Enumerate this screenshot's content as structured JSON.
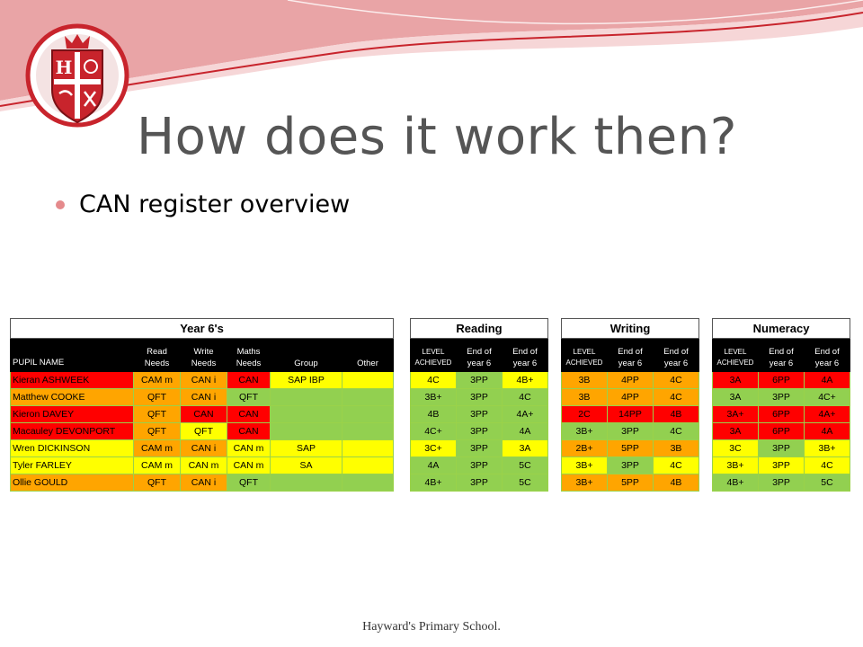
{
  "slide": {
    "title": "How does it work then?",
    "bullet": "CAN register overview",
    "footer": "Hayward's Primary School.",
    "crest_letter": "H",
    "colors": {
      "accent": "#c8242c",
      "wave": "#e9a4a6",
      "title": "#555555",
      "bullet_dot": "#e58a8c"
    }
  },
  "register": {
    "main": {
      "title": "Year 6's",
      "headers": [
        "PUPIL NAME",
        "Read\nNeeds",
        "Write\nNeeds",
        "Maths\nNeeds",
        "Group",
        "Other"
      ],
      "rows": [
        {
          "cells": [
            "Kieran ASHWEEK",
            "CAM m",
            "CAN i",
            "CAN",
            "SAP IBP",
            ""
          ],
          "colors": [
            "r",
            "o",
            "o",
            "r",
            "y",
            "y"
          ]
        },
        {
          "cells": [
            "Matthew COOKE",
            "QFT",
            "CAN i",
            "QFT",
            "",
            ""
          ],
          "colors": [
            "o",
            "o",
            "o",
            "g",
            "g",
            "g"
          ]
        },
        {
          "cells": [
            "Kieron DAVEY",
            "QFT",
            "CAN",
            "CAN",
            "",
            ""
          ],
          "colors": [
            "r",
            "o",
            "r",
            "r",
            "g",
            "g"
          ]
        },
        {
          "cells": [
            "Macauley DEVONPORT",
            "QFT",
            "QFT",
            "CAN",
            "",
            ""
          ],
          "colors": [
            "r",
            "o",
            "y",
            "r",
            "g",
            "g"
          ]
        },
        {
          "cells": [
            "Wren DICKINSON",
            "CAM m",
            "CAN i",
            "CAN m",
            "SAP",
            ""
          ],
          "colors": [
            "y",
            "o",
            "o",
            "y",
            "y",
            "y"
          ]
        },
        {
          "cells": [
            "Tyler FARLEY",
            "CAM m",
            "CAN m",
            "CAN m",
            "SA",
            ""
          ],
          "colors": [
            "y",
            "y",
            "y",
            "y",
            "y",
            "y"
          ]
        },
        {
          "cells": [
            "Ollie GOULD",
            "QFT",
            "CAN i",
            "QFT",
            "",
            ""
          ],
          "colors": [
            "o",
            "o",
            "o",
            "g",
            "g",
            "g"
          ]
        }
      ]
    },
    "subjects": [
      {
        "title": "Reading",
        "headers": [
          "LEVEL\nACHIEVED",
          "End of\nyear 6",
          "End of\nyear 6"
        ],
        "rows": [
          {
            "cells": [
              "4C",
              "3PP",
              "4B+"
            ],
            "colors": [
              "y",
              "g",
              "y"
            ]
          },
          {
            "cells": [
              "3B+",
              "3PP",
              "4C"
            ],
            "colors": [
              "g",
              "g",
              "g"
            ]
          },
          {
            "cells": [
              "4B",
              "3PP",
              "4A+"
            ],
            "colors": [
              "g",
              "g",
              "g"
            ]
          },
          {
            "cells": [
              "4C+",
              "3PP",
              "4A"
            ],
            "colors": [
              "g",
              "g",
              "g"
            ]
          },
          {
            "cells": [
              "3C+",
              "3PP",
              "3A"
            ],
            "colors": [
              "y",
              "g",
              "y"
            ]
          },
          {
            "cells": [
              "4A",
              "3PP",
              "5C"
            ],
            "colors": [
              "g",
              "g",
              "g"
            ]
          },
          {
            "cells": [
              "4B+",
              "3PP",
              "5C"
            ],
            "colors": [
              "g",
              "g",
              "g"
            ]
          }
        ]
      },
      {
        "title": "Writing",
        "headers": [
          "LEVEL\nACHIEVED",
          "End of\nyear 6",
          "End of\nyear 6"
        ],
        "rows": [
          {
            "cells": [
              "3B",
              "4PP",
              "4C"
            ],
            "colors": [
              "o",
              "o",
              "o"
            ]
          },
          {
            "cells": [
              "3B",
              "4PP",
              "4C"
            ],
            "colors": [
              "o",
              "o",
              "o"
            ]
          },
          {
            "cells": [
              "2C",
              "14PP",
              "4B"
            ],
            "colors": [
              "r",
              "r",
              "r"
            ]
          },
          {
            "cells": [
              "3B+",
              "3PP",
              "4C"
            ],
            "colors": [
              "g",
              "g",
              "g"
            ]
          },
          {
            "cells": [
              "2B+",
              "5PP",
              "3B"
            ],
            "colors": [
              "o",
              "o",
              "o"
            ]
          },
          {
            "cells": [
              "3B+",
              "3PP",
              "4C"
            ],
            "colors": [
              "y",
              "g",
              "y"
            ]
          },
          {
            "cells": [
              "3B+",
              "5PP",
              "4B"
            ],
            "colors": [
              "o",
              "o",
              "o"
            ]
          }
        ]
      },
      {
        "title": "Numeracy",
        "headers": [
          "LEVEL\nACHIEVED",
          "End of\nyear 6",
          "End of\nyear 6"
        ],
        "rows": [
          {
            "cells": [
              "3A",
              "6PP",
              "4A"
            ],
            "colors": [
              "r",
              "r",
              "r"
            ]
          },
          {
            "cells": [
              "3A",
              "3PP",
              "4C+"
            ],
            "colors": [
              "g",
              "g",
              "g"
            ]
          },
          {
            "cells": [
              "3A+",
              "6PP",
              "4A+"
            ],
            "colors": [
              "r",
              "r",
              "r"
            ]
          },
          {
            "cells": [
              "3A",
              "6PP",
              "4A"
            ],
            "colors": [
              "r",
              "r",
              "r"
            ]
          },
          {
            "cells": [
              "3C",
              "3PP",
              "3B+"
            ],
            "colors": [
              "y",
              "g",
              "y"
            ]
          },
          {
            "cells": [
              "3B+",
              "3PP",
              "4C"
            ],
            "colors": [
              "y",
              "y",
              "y"
            ]
          },
          {
            "cells": [
              "4B+",
              "3PP",
              "5C"
            ],
            "colors": [
              "g",
              "g",
              "g"
            ]
          }
        ]
      }
    ]
  }
}
